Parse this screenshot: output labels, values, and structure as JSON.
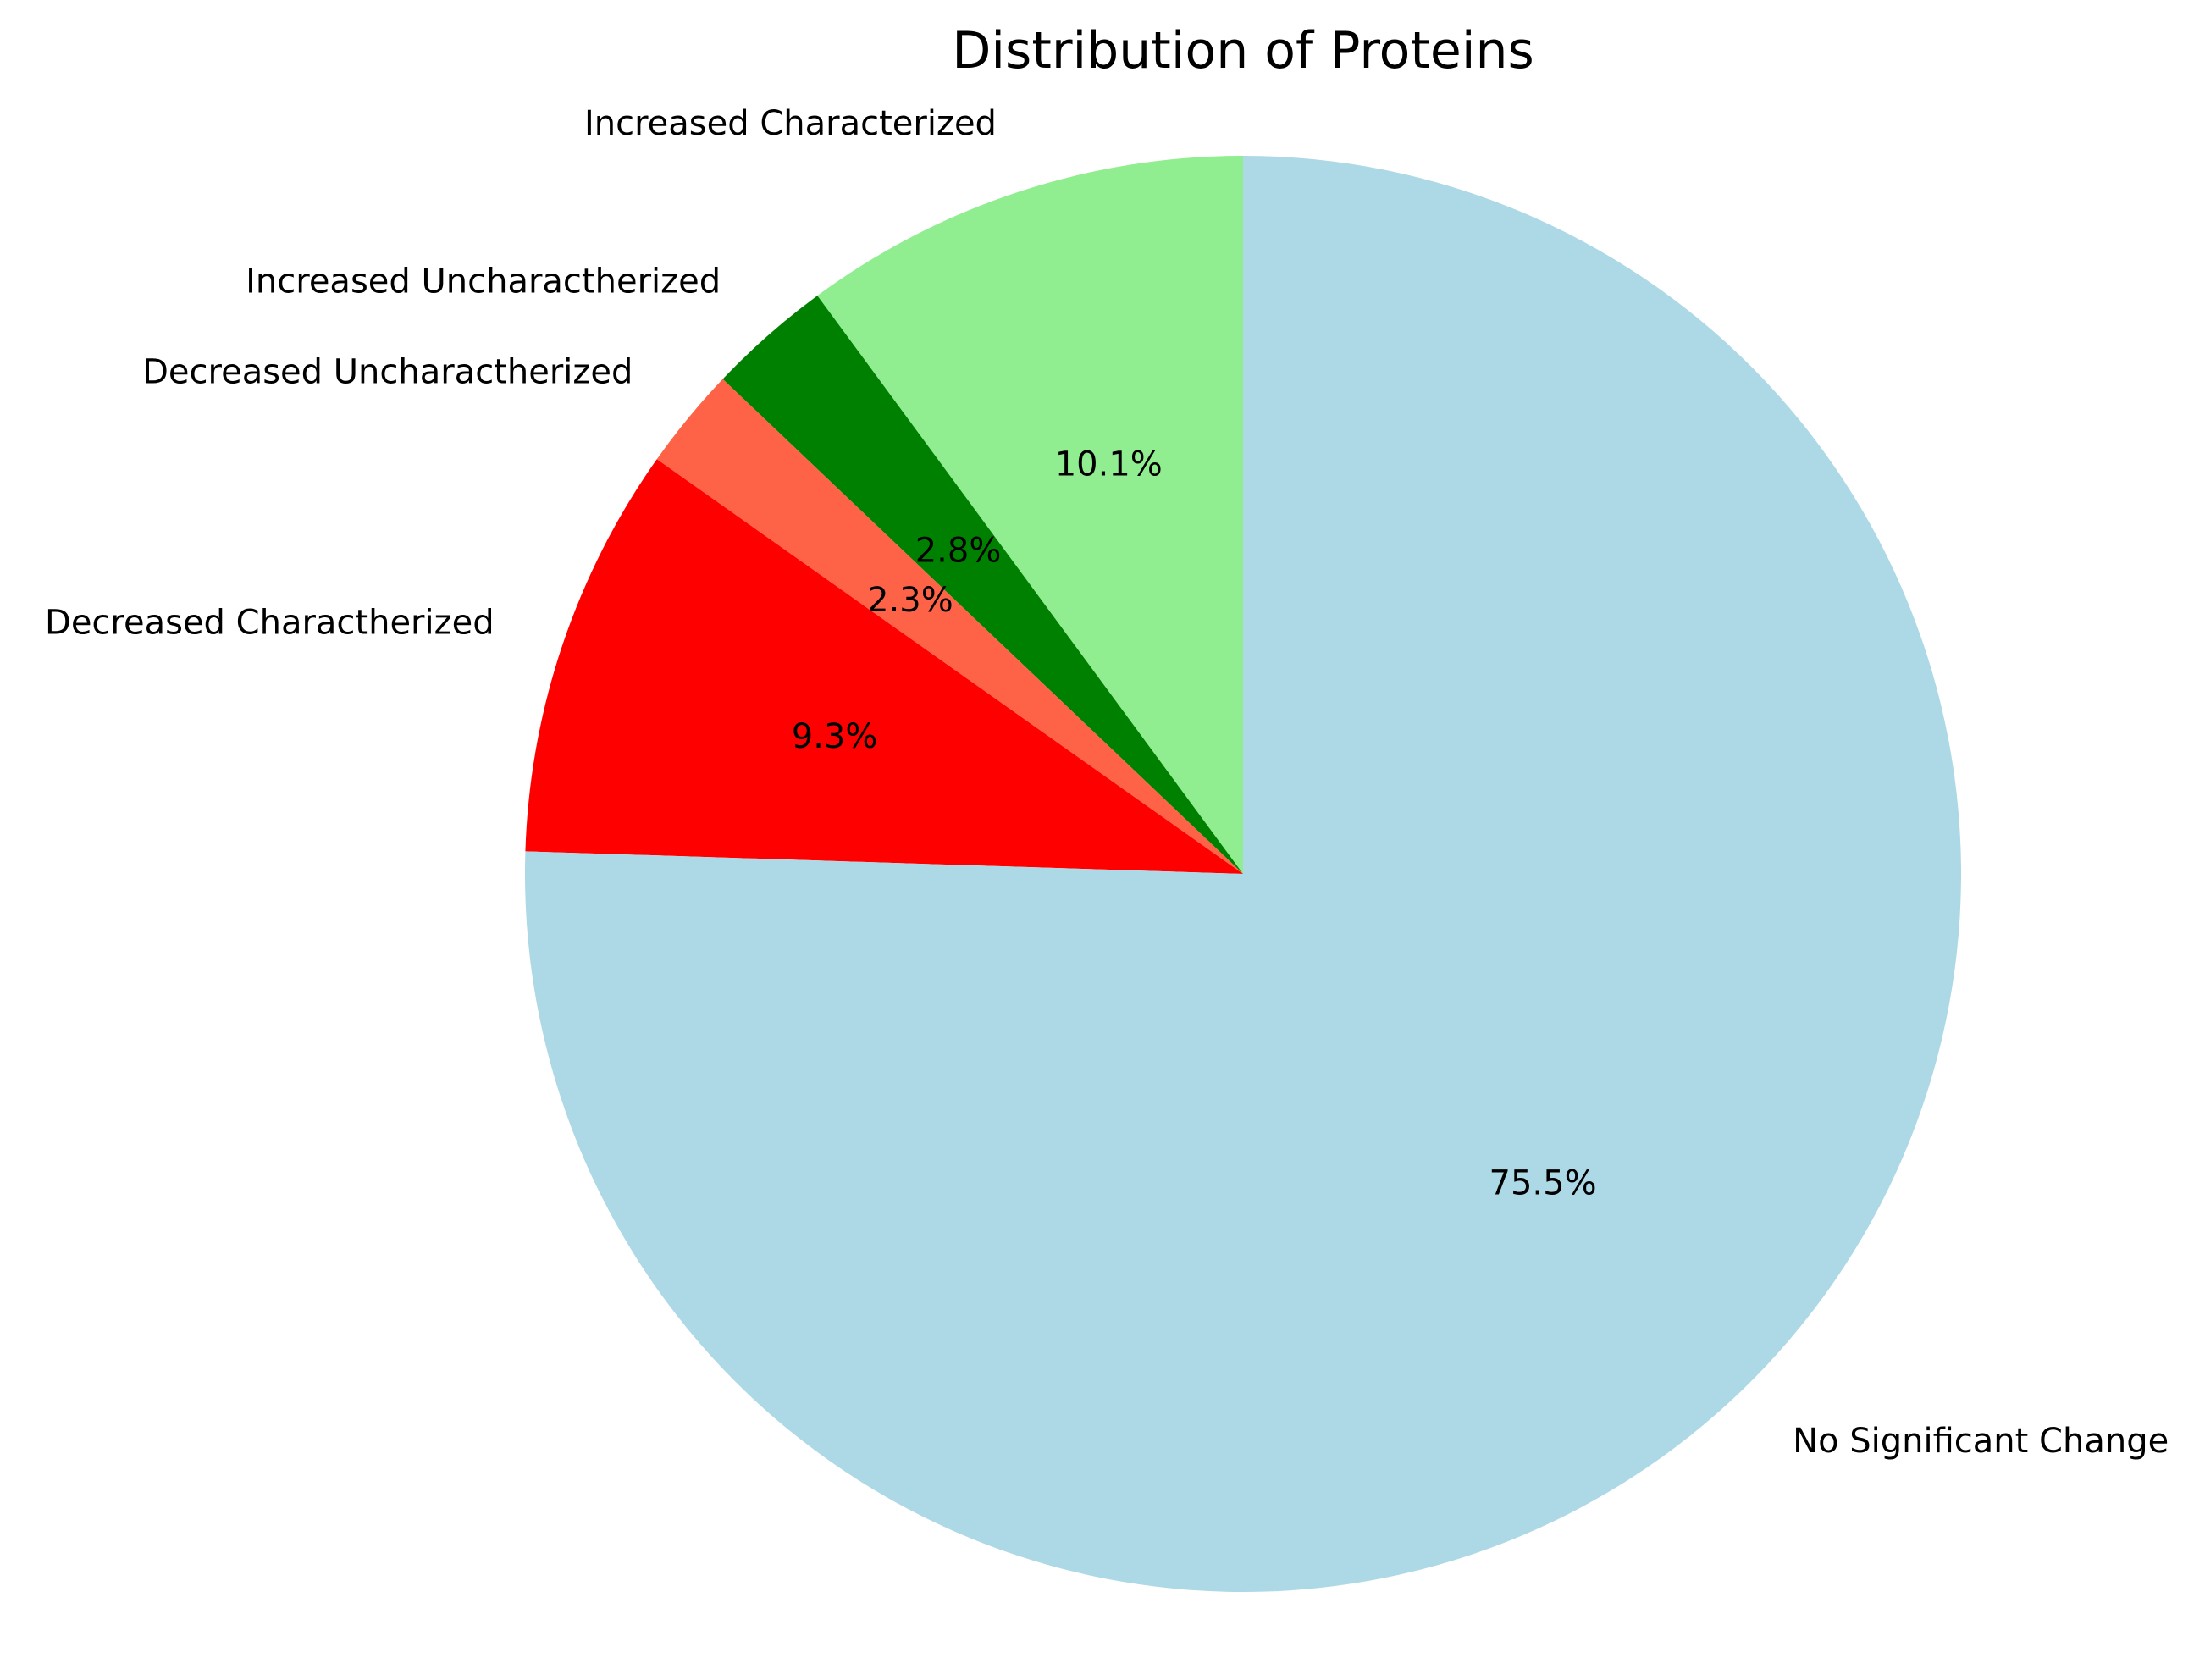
{
  "chart_data": {
    "type": "pie",
    "title": "Distribution of Proteins",
    "start_angle_deg": 90,
    "direction": "counterclockwise",
    "legend": "none",
    "slices": [
      {
        "label": "Increased Characterized",
        "percent": 10.1,
        "percent_label": "10.1%",
        "color": "#90EE90"
      },
      {
        "label": "Increased Uncharactherized",
        "percent": 2.8,
        "percent_label": "2.8%",
        "color": "#008000"
      },
      {
        "label": "Decreased Uncharactherized",
        "percent": 2.3,
        "percent_label": "2.3%",
        "color": "#FF6347"
      },
      {
        "label": "Decreased Charactherized",
        "percent": 9.3,
        "percent_label": "9.3%",
        "color": "#FF0000"
      },
      {
        "label": "No Significant Change",
        "percent": 75.5,
        "percent_label": "75.5%",
        "color": "#ADD8E6"
      }
    ]
  }
}
